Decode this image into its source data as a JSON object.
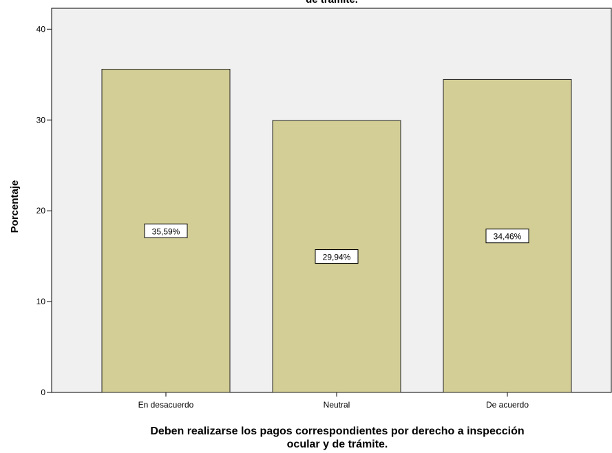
{
  "chart_data": {
    "type": "bar",
    "title": "de trámite.",
    "categories": [
      "En desacuerdo",
      "Neutral",
      "De acuerdo"
    ],
    "values": [
      35.59,
      29.94,
      34.46
    ],
    "value_labels": [
      "35,59%",
      "29,94%",
      "34,46%"
    ],
    "color": "#d3ce96",
    "ylabel": "Porcentaje",
    "xlabel": [
      "Deben realizarse los pagos correspondientes por derecho a inspección",
      "ocular y de trámite."
    ],
    "ylim": [
      0,
      42.3
    ],
    "yticks": [
      0,
      10,
      20,
      30,
      40
    ],
    "grid": false
  }
}
